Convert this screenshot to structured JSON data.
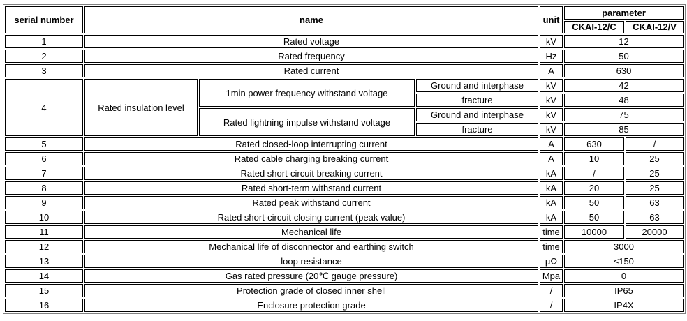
{
  "header": {
    "serial": "serial number",
    "name": "name",
    "unit": "unit",
    "parameter": "parameter",
    "model_c": "CKAI-12/C",
    "model_v": "CKAI-12/V"
  },
  "rows": [
    {
      "no": "1",
      "name": "Rated voltage",
      "unit": "kV",
      "value": "12"
    },
    {
      "no": "2",
      "name": "Rated frequency",
      "unit": "Hz",
      "value": "50"
    },
    {
      "no": "3",
      "name": "Rated current",
      "unit": "A",
      "value": "630"
    },
    {
      "no": "5",
      "name": "Rated closed-loop interrupting current",
      "unit": "A",
      "c": "630",
      "v": "/"
    },
    {
      "no": "6",
      "name": "Rated cable charging breaking current",
      "unit": "A",
      "c": "10",
      "v": "25"
    },
    {
      "no": "7",
      "name": "Rated short-circuit breaking current",
      "unit": "kA",
      "c": "/",
      "v": "25"
    },
    {
      "no": "8",
      "name": "Rated short-term withstand current",
      "unit": "kA",
      "c": "20",
      "v": "25"
    },
    {
      "no": "9",
      "name": "Rated peak withstand current",
      "unit": "kA",
      "c": "50",
      "v": "63"
    },
    {
      "no": "10",
      "name": "Rated short-circuit closing current (peak value)",
      "unit": "kA",
      "c": "50",
      "v": "63"
    },
    {
      "no": "11",
      "name": "Mechanical life",
      "unit": "time",
      "c": "10000",
      "v": "20000"
    },
    {
      "no": "12",
      "name": "Mechanical life of disconnector and earthing switch",
      "unit": "time",
      "value": "3000"
    },
    {
      "no": "13",
      "name": "loop resistance",
      "unit": "μΩ",
      "value": "≤150"
    },
    {
      "no": "14",
      "name": "Gas rated pressure (20℃ gauge pressure)",
      "unit": "Mpa",
      "value": "0"
    },
    {
      "no": "15",
      "name": "Protection grade of closed inner shell",
      "unit": "/",
      "value": "IP65"
    },
    {
      "no": "16",
      "name": "Enclosure protection grade",
      "unit": "/",
      "value": "IP4X"
    }
  ],
  "insulation": {
    "no": "4",
    "name": "Rated insulation level",
    "groups": [
      {
        "name": "1min power frequency withstand voltage",
        "items": [
          {
            "label": "Ground and interphase",
            "unit": "kV",
            "value": "42"
          },
          {
            "label": "fracture",
            "unit": "kV",
            "value": "48"
          }
        ]
      },
      {
        "name": "Rated lightning impulse withstand voltage",
        "items": [
          {
            "label": "Ground and interphase",
            "unit": "kV",
            "value": "75"
          },
          {
            "label": "fracture",
            "unit": "kV",
            "value": "85"
          }
        ]
      }
    ]
  }
}
